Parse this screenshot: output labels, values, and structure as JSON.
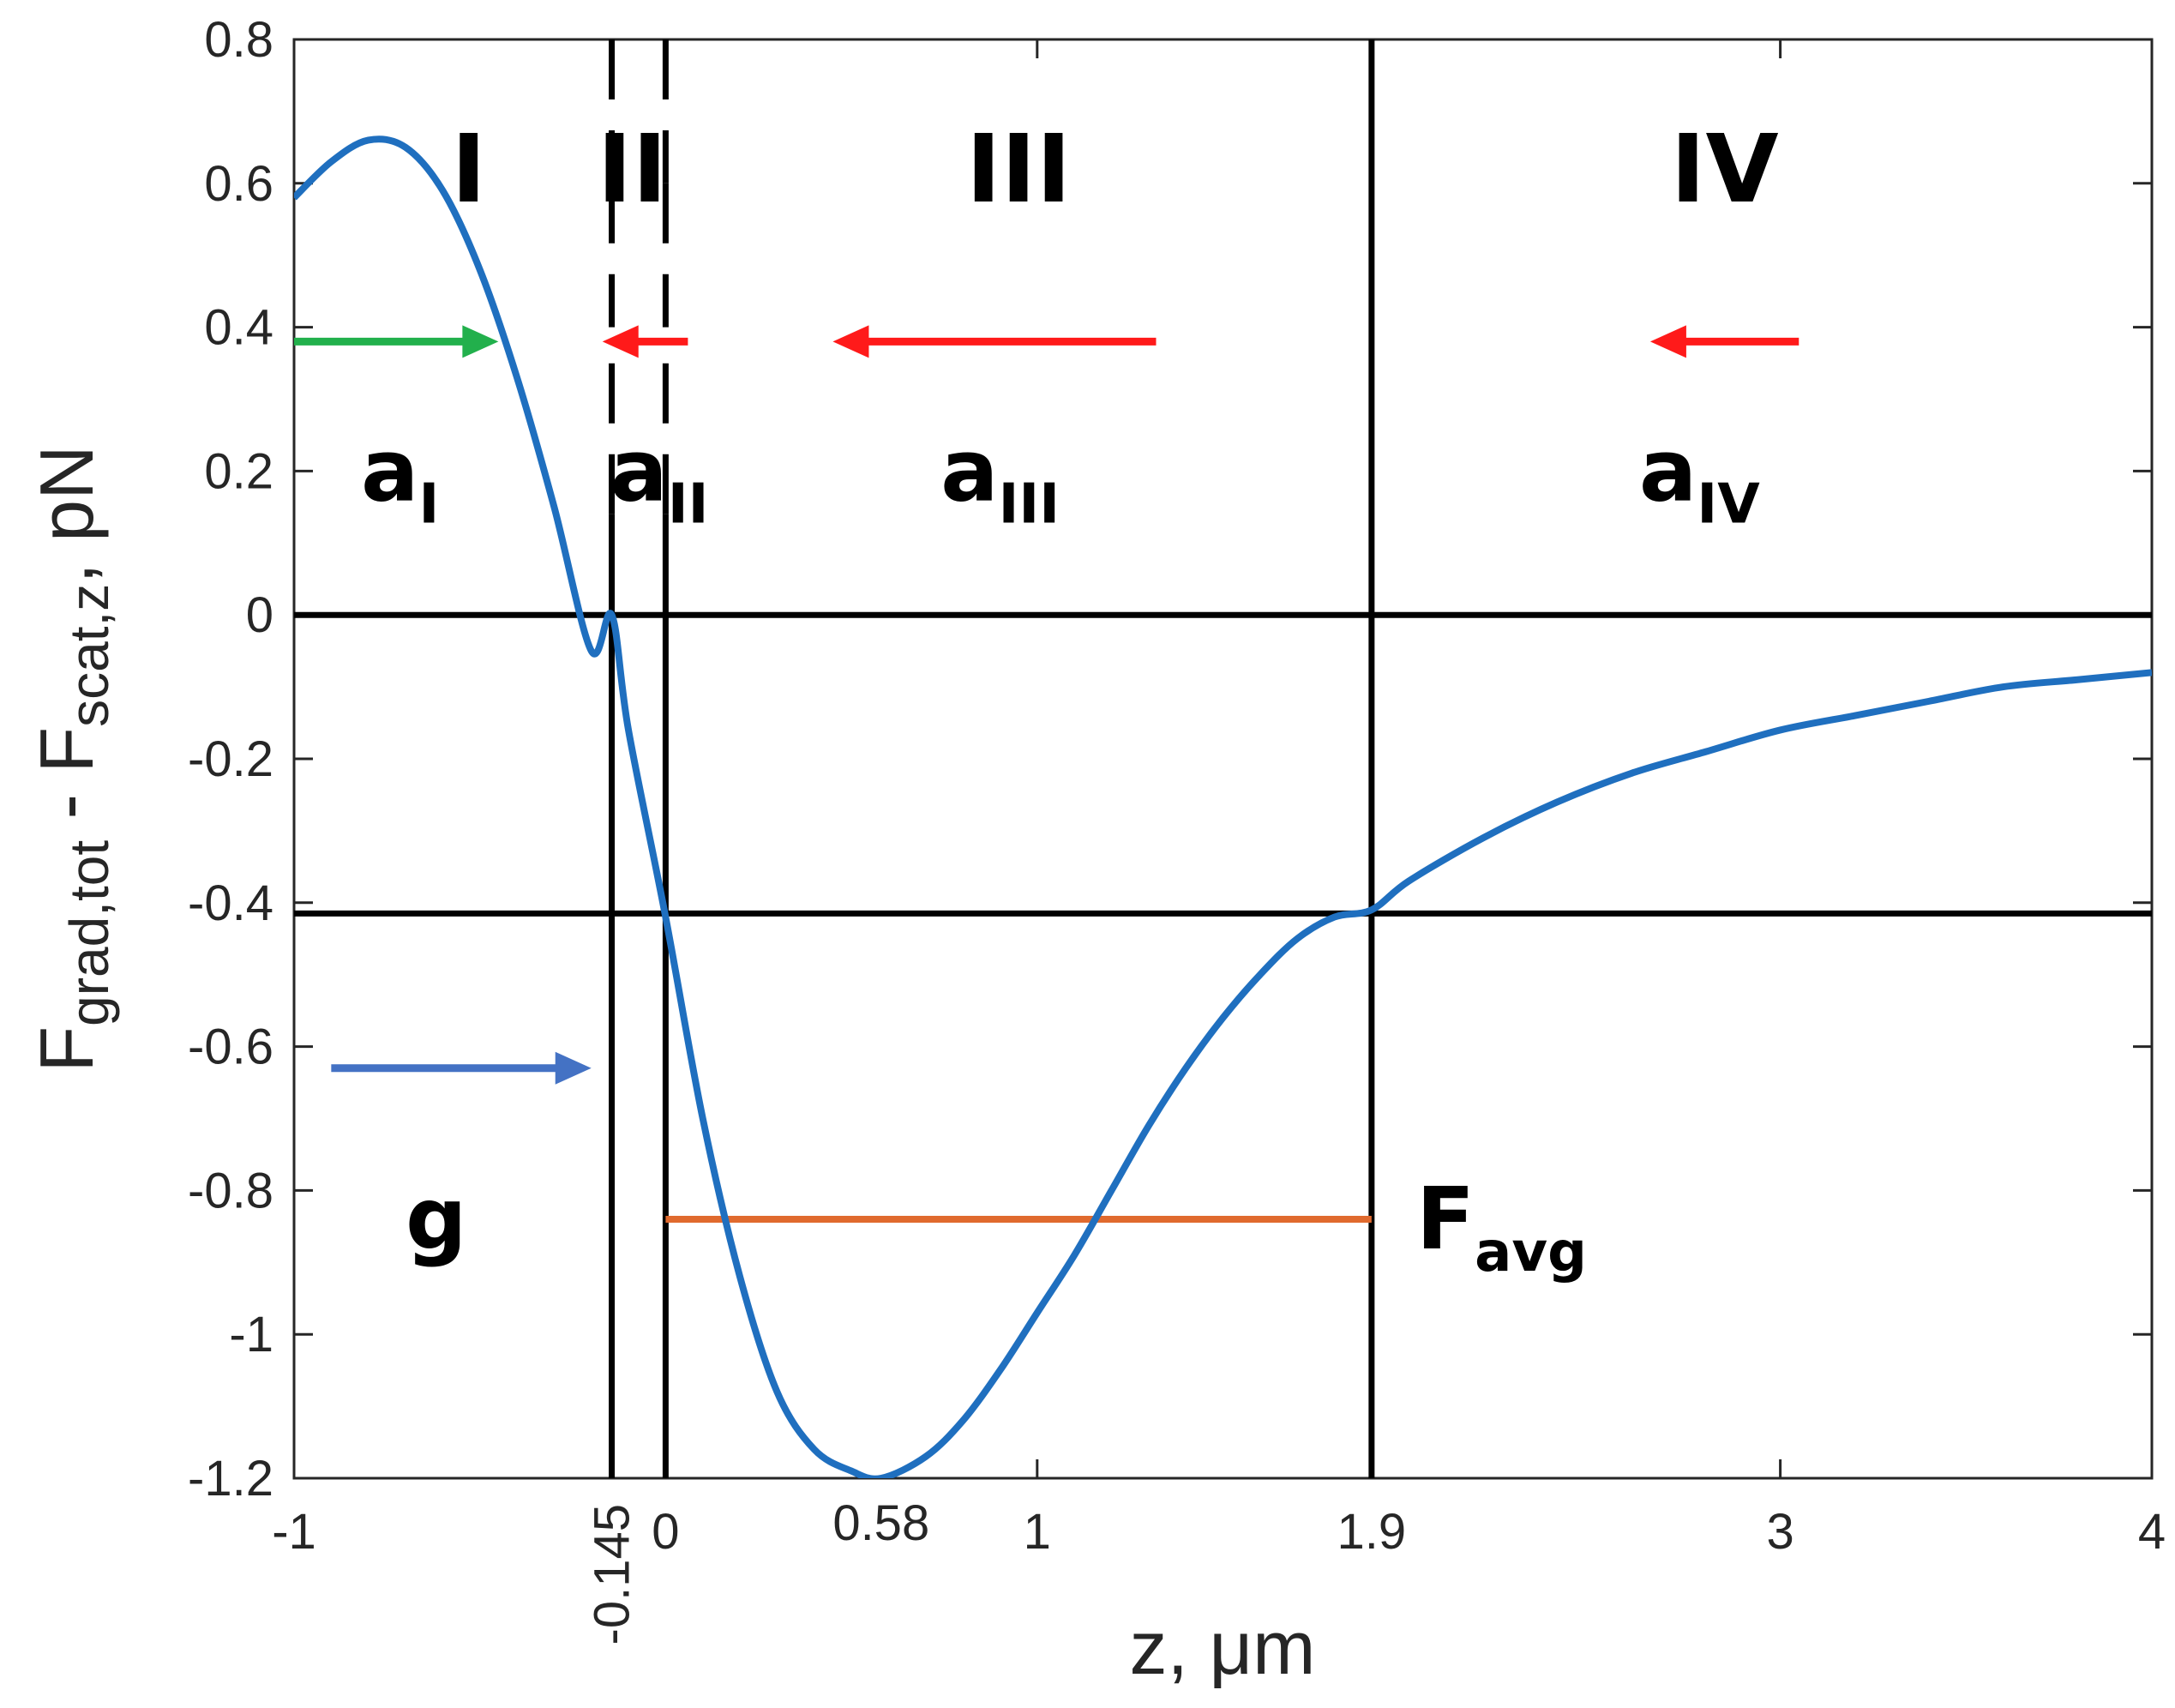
{
  "chart_data": {
    "type": "line",
    "xlabel": "z, μm",
    "ylabel": {
      "main": "F",
      "sub1": "grad,tot",
      "mid": " - F",
      "sub2": "scat,z",
      "tail": ", pN"
    },
    "xlim": [
      -1,
      4
    ],
    "ylim": [
      -1.2,
      0.8
    ],
    "xticks": [
      {
        "value": -1,
        "label": "-1"
      },
      {
        "value": 0,
        "label": "0"
      },
      {
        "value": 1,
        "label": "1"
      },
      {
        "value": 1.9,
        "label": "1.9"
      },
      {
        "value": 3,
        "label": "3"
      },
      {
        "value": 4,
        "label": "4"
      }
    ],
    "extra_xlabels": [
      {
        "value": -0.145,
        "label": "-0.145",
        "rotated": true
      },
      {
        "value": 0.58,
        "label": "0.58",
        "rotated": false
      }
    ],
    "yticks": [
      {
        "value": 0.8,
        "label": "0.8"
      },
      {
        "value": 0.6,
        "label": "0.6"
      },
      {
        "value": 0.4,
        "label": "0.4"
      },
      {
        "value": 0.2,
        "label": "0.2"
      },
      {
        "value": 0,
        "label": "0"
      },
      {
        "value": -0.2,
        "label": "-0.2"
      },
      {
        "value": -0.4,
        "label": "-0.4"
      },
      {
        "value": -0.6,
        "label": "-0.6"
      },
      {
        "value": -0.8,
        "label": "-0.8"
      },
      {
        "value": -1,
        "label": "-1"
      },
      {
        "value": -1.2,
        "label": "-1.2"
      }
    ],
    "series": [
      {
        "color": "#1f6fbf",
        "x": [
          -1,
          -0.9,
          -0.8,
          -0.7,
          -0.6,
          -0.5,
          -0.4,
          -0.3,
          -0.2,
          -0.145,
          -0.1,
          0,
          0.1,
          0.2,
          0.3,
          0.4,
          0.5,
          0.58,
          0.7,
          0.8,
          0.9,
          1.0,
          1.1,
          1.2,
          1.3,
          1.4,
          1.5,
          1.6,
          1.7,
          1.8,
          1.9,
          2.0,
          2.2,
          2.4,
          2.6,
          2.8,
          3.0,
          3.2,
          3.4,
          3.6,
          3.8,
          4.0
        ],
        "y": [
          0.58,
          0.63,
          0.66,
          0.65,
          0.59,
          0.48,
          0.33,
          0.15,
          -0.05,
          0.0,
          -0.16,
          -0.42,
          -0.7,
          -0.92,
          -1.08,
          -1.16,
          -1.19,
          -1.2,
          -1.17,
          -1.12,
          -1.05,
          -0.97,
          -0.89,
          -0.8,
          -0.71,
          -0.63,
          -0.56,
          -0.5,
          -0.45,
          -0.42,
          -0.41,
          -0.37,
          -0.31,
          -0.26,
          -0.22,
          -0.19,
          -0.16,
          -0.14,
          -0.12,
          -0.1,
          -0.09,
          -0.08
        ]
      }
    ],
    "hlines": [
      {
        "y": 0,
        "color": "#000000"
      },
      {
        "y": -0.415,
        "color": "#000000"
      }
    ],
    "vlines": [
      {
        "x": -0.145,
        "segments": [
          [
            0.8,
            0.6,
            "dash"
          ],
          [
            0.6,
            0.4,
            "dash"
          ],
          [
            0.14,
            0.36,
            "dash"
          ],
          [
            0.14,
            -1.2,
            "solid"
          ]
        ]
      },
      {
        "x": 0,
        "segments": [
          [
            0.8,
            0.6,
            "dash"
          ],
          [
            0.6,
            0.4,
            "dash"
          ],
          [
            0.14,
            0.36,
            "dash"
          ],
          [
            0.14,
            -1.2,
            "solid"
          ]
        ]
      },
      {
        "x": 1.9,
        "segments": [
          [
            0.8,
            -1.2,
            "solid"
          ]
        ]
      }
    ],
    "favg_line": {
      "x1": 0,
      "x2": 1.9,
      "y": -0.84,
      "color": "#e06a2e"
    },
    "region_labels": [
      {
        "text": "I",
        "x": -0.53,
        "y": 0.62
      },
      {
        "text": "II",
        "x": -0.09,
        "y": 0.62
      },
      {
        "text": "III",
        "x": 0.95,
        "y": 0.62
      },
      {
        "text": "IV",
        "x": 2.85,
        "y": 0.62
      }
    ],
    "arrows": [
      {
        "x1": -1,
        "x2": -0.45,
        "y": 0.38,
        "color": "#22b04c"
      },
      {
        "x1": 0.06,
        "x2": -0.17,
        "y": 0.38,
        "color": "#ff1a1a"
      },
      {
        "x1": 1.32,
        "x2": 0.45,
        "y": 0.38,
        "color": "#ff1a1a"
      },
      {
        "x1": 3.05,
        "x2": 2.65,
        "y": 0.38,
        "color": "#ff1a1a"
      },
      {
        "x1": -0.9,
        "x2": -0.2,
        "y": -0.63,
        "color": "#4472c4"
      }
    ],
    "annotations": [
      {
        "base": "a",
        "sub": "I",
        "x": -0.82,
        "y": 0.2
      },
      {
        "base": "a",
        "sub": "II",
        "x": -0.15,
        "y": 0.2
      },
      {
        "base": "a",
        "sub": "III",
        "x": 0.74,
        "y": 0.2
      },
      {
        "base": "a",
        "sub": "IV",
        "x": 2.62,
        "y": 0.2
      },
      {
        "base": "g",
        "sub": "",
        "x": -0.7,
        "y": -0.84
      },
      {
        "base": "F",
        "sub": "avg",
        "x": 2.02,
        "y": -0.84
      }
    ]
  }
}
